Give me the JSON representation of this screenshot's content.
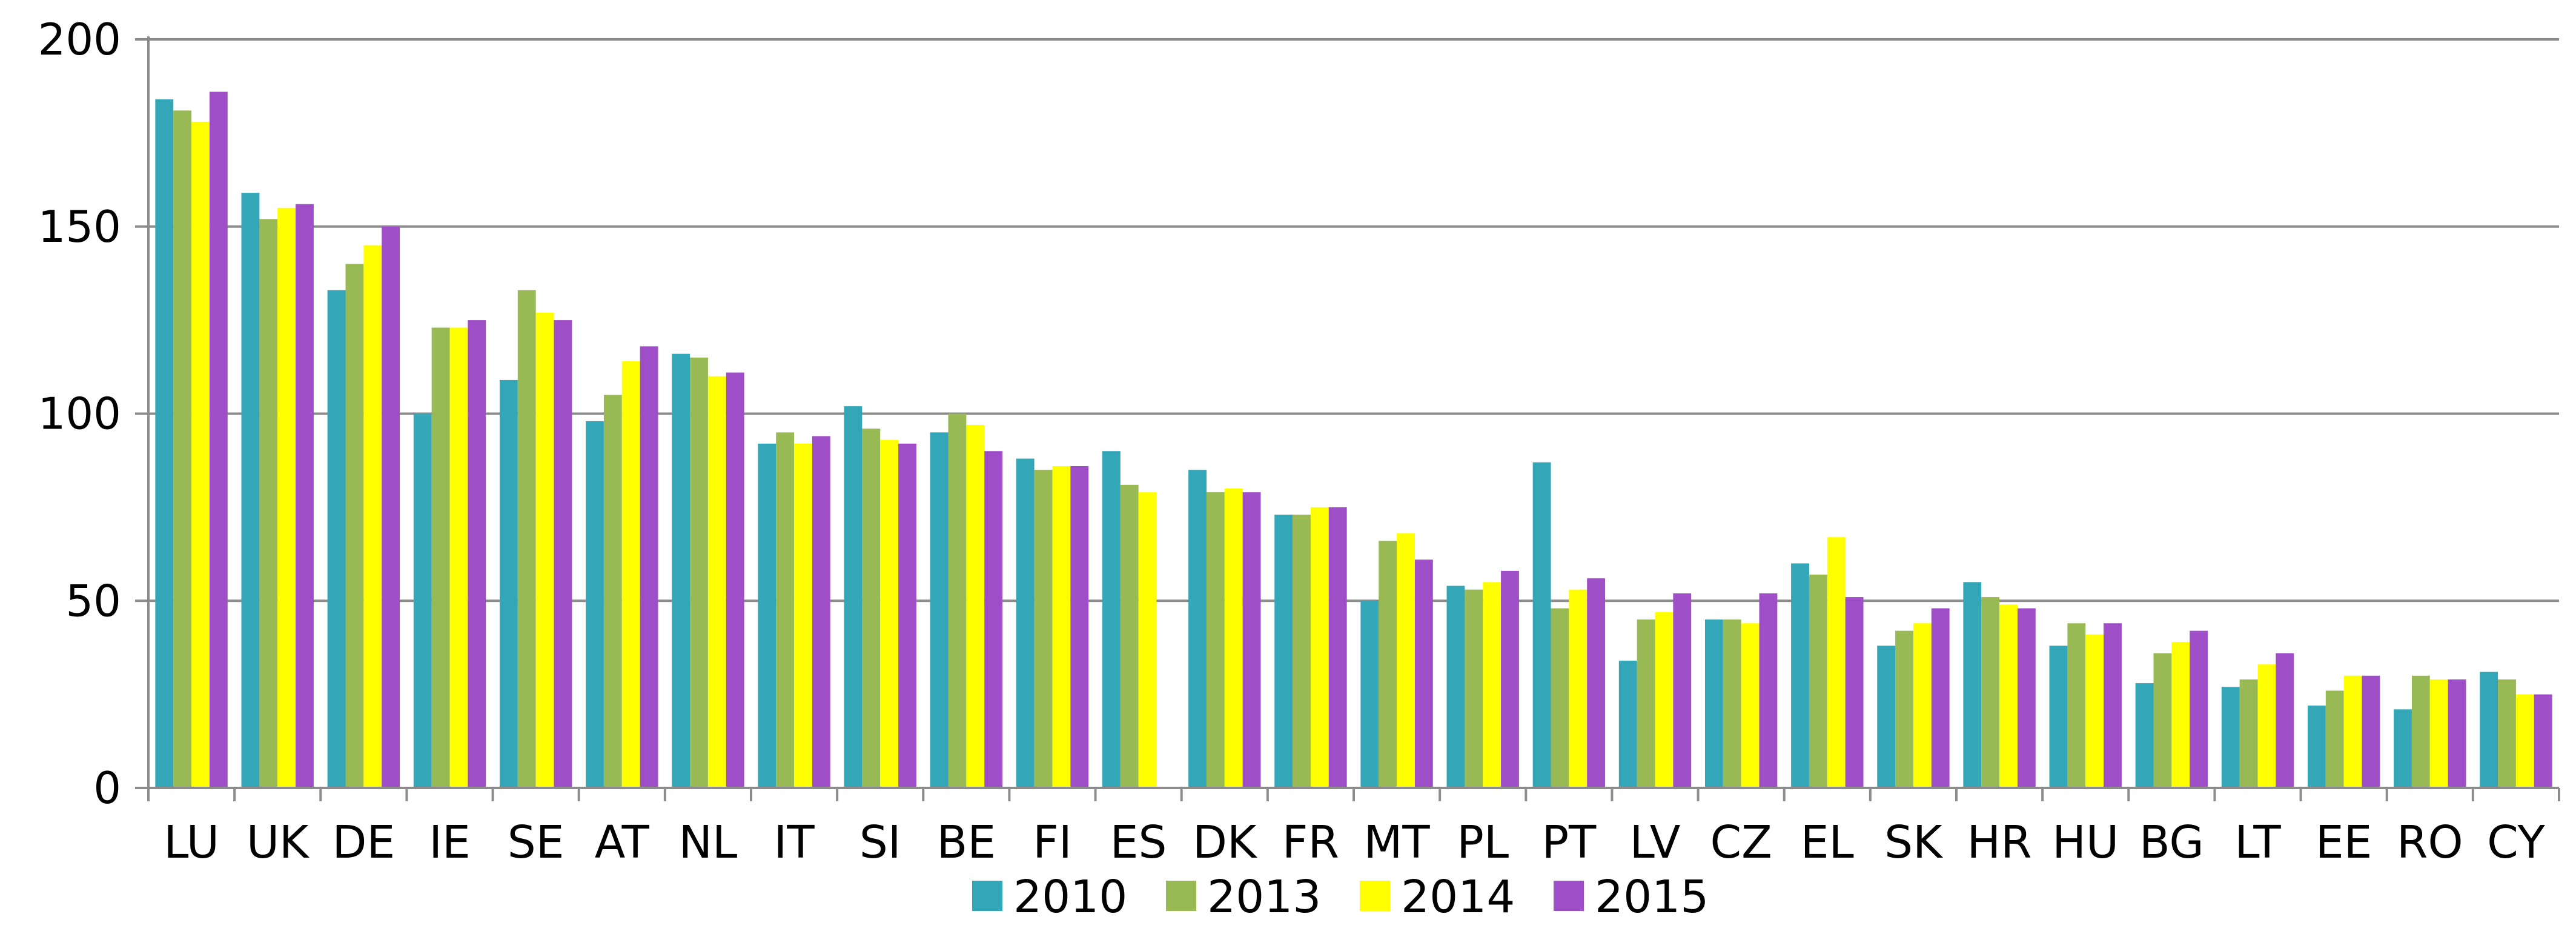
{
  "chart_data": {
    "type": "bar",
    "title": "",
    "xlabel": "",
    "ylabel": "",
    "ylim": [
      0,
      200
    ],
    "yticks": [
      0,
      50,
      100,
      150,
      200
    ],
    "grid": true,
    "legend_position": "bottom",
    "categories": [
      "LU",
      "UK",
      "DE",
      "IE",
      "SE",
      "AT",
      "NL",
      "IT",
      "SI",
      "BE",
      "FI",
      "ES",
      "DK",
      "FR",
      "MT",
      "PL",
      "PT",
      "LV",
      "CZ",
      "EL",
      "SK",
      "HR",
      "HU",
      "BG",
      "LT",
      "EE",
      "RO",
      "CY"
    ],
    "series": [
      {
        "name": "2010",
        "color": "#33A7B8",
        "values": [
          184,
          159,
          133,
          100,
          109,
          98,
          116,
          92,
          102,
          95,
          88,
          90,
          85,
          73,
          50,
          54,
          87,
          34,
          45,
          60,
          38,
          55,
          38,
          28,
          27,
          22,
          21,
          31
        ]
      },
      {
        "name": "2013",
        "color": "#99B955",
        "values": [
          181,
          152,
          140,
          123,
          133,
          105,
          115,
          95,
          96,
          100,
          85,
          81,
          79,
          73,
          66,
          53,
          48,
          45,
          45,
          57,
          42,
          51,
          44,
          36,
          29,
          26,
          30,
          29
        ]
      },
      {
        "name": "2014",
        "color": "#FFFF00",
        "values": [
          178,
          155,
          145,
          123,
          127,
          114,
          110,
          92,
          93,
          97,
          86,
          79,
          80,
          75,
          68,
          55,
          53,
          47,
          44,
          67,
          44,
          49,
          41,
          39,
          33,
          30,
          29,
          25
        ]
      },
      {
        "name": "2015",
        "color": "#9E4FC8",
        "values": [
          186,
          156,
          150,
          125,
          125,
          118,
          111,
          94,
          92,
          90,
          86,
          null,
          79,
          75,
          61,
          58,
          56,
          52,
          52,
          51,
          48,
          48,
          44,
          42,
          36,
          30,
          29,
          25
        ]
      }
    ]
  }
}
